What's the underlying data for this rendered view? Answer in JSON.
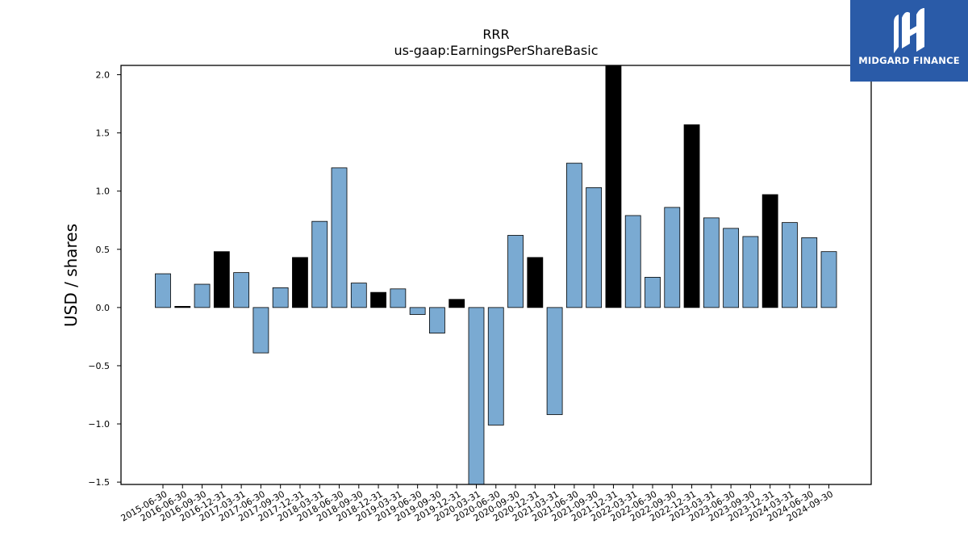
{
  "chart_data": {
    "type": "bar",
    "title": "RRR",
    "subtitle": "us-gaap:EarningsPerShareBasic",
    "ylabel": "USD / shares",
    "xlabel": "",
    "ylim": [
      -1.52,
      2.08
    ],
    "yticks": [
      "2.0",
      "1.5",
      "1.0",
      "0.5",
      "0.0",
      "−0.5",
      "−1.0",
      "−1.5"
    ],
    "ytick_values": [
      2.0,
      1.5,
      1.0,
      0.5,
      0.0,
      -0.5,
      -1.0,
      -1.5
    ],
    "grid": false,
    "colors": {
      "quarterly": "#7aaad2",
      "annual": "#000000",
      "edge": "#000000"
    },
    "categories": [
      "2015-06-30",
      "2016-06-30",
      "2016-09-30",
      "2016-12-31",
      "2017-03-31",
      "2017-06-30",
      "2017-09-30",
      "2017-12-31",
      "2018-03-31",
      "2018-06-30",
      "2018-09-30",
      "2018-12-31",
      "2019-03-31",
      "2019-06-30",
      "2019-09-30",
      "2019-12-31",
      "2020-03-31",
      "2020-06-30",
      "2020-09-30",
      "2020-12-31",
      "2021-03-31",
      "2021-06-30",
      "2021-09-30",
      "2021-12-31",
      "2022-03-31",
      "2022-06-30",
      "2022-09-30",
      "2022-12-31",
      "2023-03-31",
      "2023-06-30",
      "2023-09-30",
      "2023-12-31",
      "2024-03-31",
      "2024-06-30",
      "2024-09-30"
    ],
    "values": [
      0.29,
      0.01,
      0.2,
      0.48,
      0.3,
      -0.39,
      0.17,
      0.43,
      0.74,
      1.2,
      0.21,
      0.13,
      0.16,
      -0.06,
      -0.22,
      0.07,
      -1.6,
      -1.01,
      0.62,
      0.43,
      -0.92,
      1.24,
      1.03,
      2.1,
      0.79,
      0.26,
      0.86,
      1.57,
      0.77,
      0.68,
      0.61,
      0.97,
      0.73,
      0.6,
      0.48
    ],
    "bar_kind": [
      "q",
      "a",
      "q",
      "a",
      "q",
      "q",
      "q",
      "a",
      "q",
      "q",
      "q",
      "a",
      "q",
      "q",
      "q",
      "a",
      "q",
      "q",
      "q",
      "a",
      "q",
      "q",
      "q",
      "a",
      "q",
      "q",
      "q",
      "a",
      "q",
      "q",
      "q",
      "a",
      "q",
      "q",
      "q"
    ]
  },
  "logo": {
    "text": "MIDGARD FINANCE",
    "icon": "midgard-logo-icon"
  }
}
